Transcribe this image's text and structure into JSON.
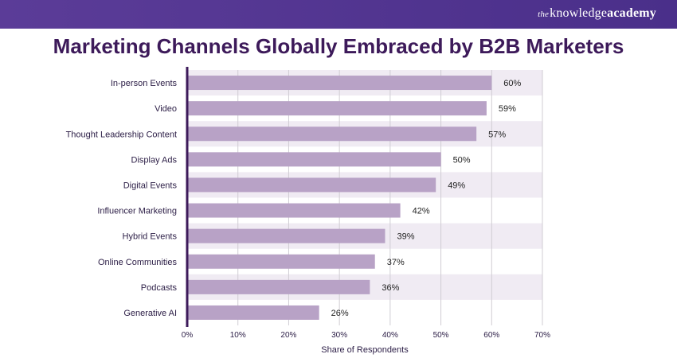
{
  "brand": {
    "prefix": "the",
    "name_main": "knowledge",
    "name_bold": "academy"
  },
  "title": "Marketing Channels Globally Embraced by B2B Marketers",
  "colors": {
    "bar": "#b8a2c6",
    "band": "#f0ebf3",
    "axis": "#3d1a5a",
    "grid": "#d0cdd3",
    "header": "#4e338f"
  },
  "chart_data": {
    "type": "bar",
    "orientation": "horizontal",
    "title": "Marketing Channels Globally Embraced by B2B Marketers",
    "xlabel": "Share of Respondents",
    "ylabel": "",
    "xlim": [
      0,
      70
    ],
    "x_ticks": [
      "0%",
      "10%",
      "20%",
      "30%",
      "40%",
      "50%",
      "60%",
      "70%"
    ],
    "grid": true,
    "categories": [
      "In-person Events",
      "Video",
      "Thought Leadership Content",
      "Display Ads",
      "Digital Events",
      "Influencer Marketing",
      "Hybrid Events",
      "Online Communities",
      "Podcasts",
      "Generative AI"
    ],
    "values": [
      60,
      59,
      57,
      50,
      49,
      42,
      39,
      37,
      36,
      26
    ],
    "value_labels": [
      "60%",
      "59%",
      "57%",
      "50%",
      "49%",
      "42%",
      "39%",
      "37%",
      "36%",
      "26%"
    ]
  }
}
